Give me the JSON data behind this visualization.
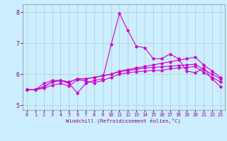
{
  "xlabel": "Windchill (Refroidissement éolien,°C)",
  "x": [
    0,
    1,
    2,
    3,
    4,
    5,
    6,
    7,
    8,
    9,
    10,
    11,
    12,
    13,
    14,
    15,
    16,
    17,
    18,
    19,
    20,
    21,
    22,
    23
  ],
  "series": [
    [
      5.5,
      5.5,
      5.7,
      5.8,
      5.8,
      5.7,
      5.4,
      5.7,
      5.8,
      5.85,
      6.95,
      7.95,
      7.4,
      6.9,
      6.85,
      6.5,
      6.5,
      6.65,
      6.5,
      6.1,
      6.05,
      6.2,
      5.85,
      5.6
    ],
    [
      5.5,
      5.5,
      5.6,
      5.75,
      5.8,
      5.75,
      5.85,
      5.85,
      5.9,
      5.95,
      6.0,
      6.1,
      6.15,
      6.2,
      6.25,
      6.3,
      6.35,
      6.4,
      6.45,
      6.5,
      6.55,
      6.3,
      6.1,
      5.9
    ],
    [
      5.5,
      5.5,
      5.6,
      5.75,
      5.8,
      5.75,
      5.85,
      5.85,
      5.9,
      5.95,
      6.0,
      6.08,
      6.12,
      6.16,
      6.2,
      6.22,
      6.24,
      6.26,
      6.28,
      6.3,
      6.32,
      6.15,
      6.0,
      5.85
    ],
    [
      5.5,
      5.5,
      5.55,
      5.65,
      5.7,
      5.62,
      5.82,
      5.78,
      5.72,
      5.8,
      5.9,
      6.0,
      6.05,
      6.08,
      6.1,
      6.12,
      6.12,
      6.18,
      6.2,
      6.22,
      6.25,
      6.05,
      5.9,
      5.75
    ]
  ],
  "line_color": "#cc00cc",
  "marker": "D",
  "markersize": 1.8,
  "linewidth": 0.8,
  "bg_color": "#cceeff",
  "plot_bg": "#cceeff",
  "grid_color": "#aacccc",
  "ylim": [
    4.85,
    8.25
  ],
  "yticks": [
    5,
    6,
    7,
    8
  ],
  "xlim": [
    -0.5,
    23.5
  ],
  "xticks": [
    0,
    1,
    2,
    3,
    4,
    5,
    6,
    7,
    8,
    9,
    10,
    11,
    12,
    13,
    14,
    15,
    16,
    17,
    18,
    19,
    20,
    21,
    22,
    23
  ],
  "tick_color": "#880088",
  "label_color": "#880088"
}
